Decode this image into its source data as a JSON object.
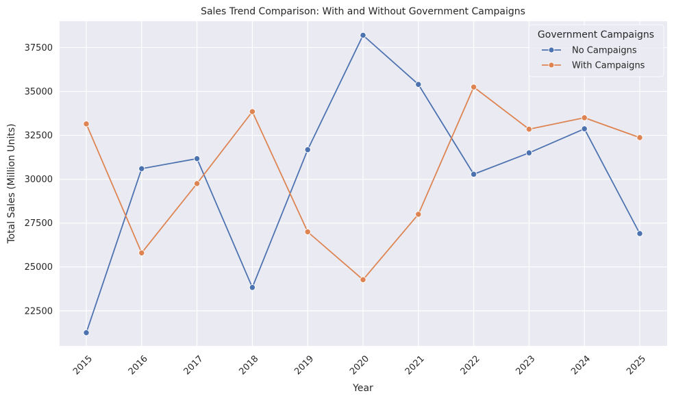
{
  "chart_data": {
    "type": "line",
    "title": "Sales Trend Comparison: With and Without Government Campaigns",
    "xlabel": "Year",
    "ylabel": "Total Sales (Million Units)",
    "x": [
      "2015",
      "2016",
      "2017",
      "2018",
      "2019",
      "2020",
      "2021",
      "2022",
      "2023",
      "2024",
      "2025"
    ],
    "ylim": [
      20500,
      39000
    ],
    "yticks": [
      "22500",
      "25000",
      "27500",
      "30000",
      "32500",
      "35000",
      "37500"
    ],
    "grid": true,
    "legend": {
      "title": "Government Campaigns",
      "placement": "top-right"
    },
    "series": [
      {
        "name": "No Campaigns",
        "color": "#4c72b0",
        "values": [
          21250,
          30600,
          31170,
          23830,
          31680,
          38200,
          35400,
          30280,
          31500,
          32870,
          26900
        ]
      },
      {
        "name": "With Campaigns",
        "color": "#dd8452",
        "values": [
          33150,
          25800,
          29750,
          33850,
          27000,
          24270,
          28000,
          35250,
          32850,
          33500,
          32370
        ]
      }
    ]
  }
}
